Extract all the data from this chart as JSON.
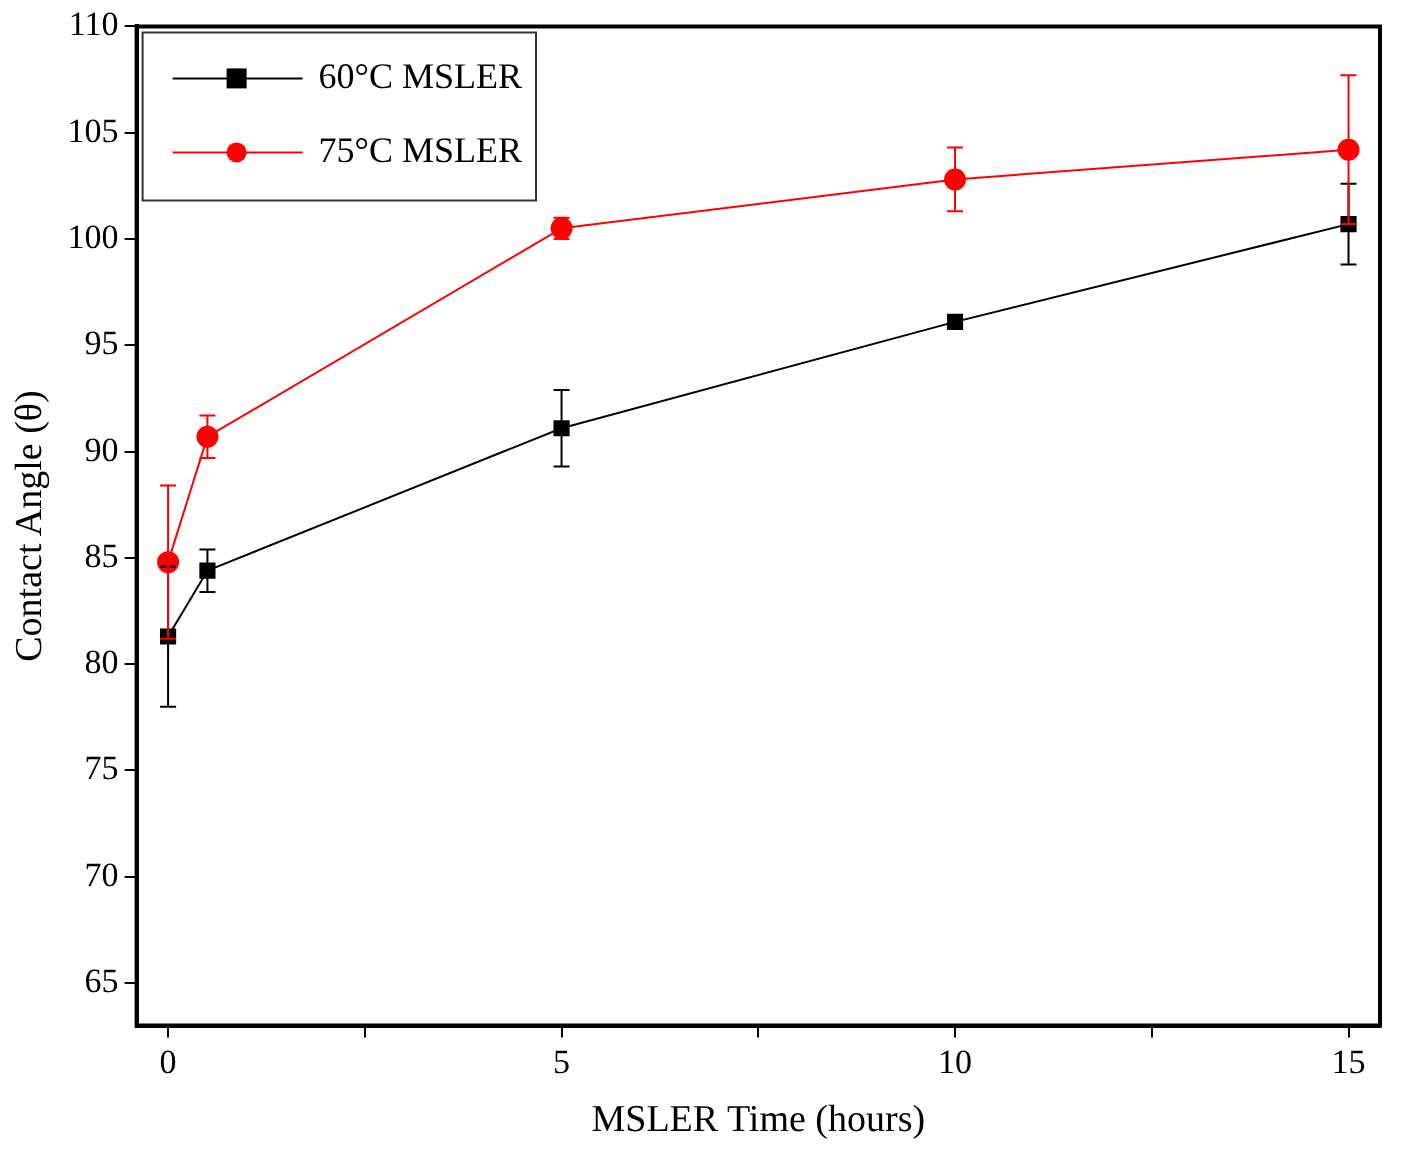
{
  "chart_data": {
    "type": "line",
    "xlabel": "MSLER Time (hours)",
    "ylabel": "Contact Angle (θ)",
    "x": [
      0,
      0.5,
      5,
      10,
      15
    ],
    "series": [
      {
        "name": "60°C MSLER",
        "color": "#000000",
        "marker": "square",
        "values": [
          81.3,
          84.4,
          91.1,
          96.1,
          100.7
        ],
        "errors": [
          3.3,
          1.0,
          1.8,
          null,
          1.9
        ]
      },
      {
        "name": "75°C MSLER",
        "color": "#ff0000",
        "marker": "circle",
        "values": [
          84.8,
          90.7,
          100.5,
          102.8,
          104.2
        ],
        "errors": [
          3.6,
          1.0,
          0.5,
          1.5,
          3.5
        ]
      }
    ],
    "xlim": [
      -0.4,
      15.4
    ],
    "xticks": [
      0,
      {
        "value": 2.5,
        "label": null
      },
      5,
      {
        "value": 7.5,
        "label": null
      },
      10,
      {
        "value": 12.5,
        "label": null
      },
      15
    ],
    "ylim": [
      63,
      110
    ],
    "yticks": [
      65,
      70,
      75,
      80,
      85,
      90,
      95,
      100,
      105,
      110
    ],
    "grid": false,
    "legend": "top left",
    "line_style": "solid"
  }
}
